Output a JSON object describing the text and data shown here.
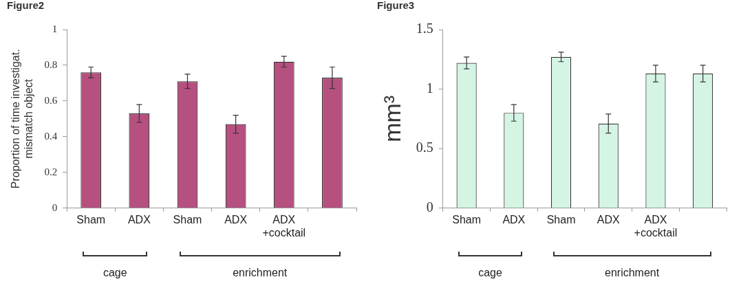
{
  "chart_data": [
    {
      "type": "bar",
      "title": "Figure2",
      "ylabel": "Proportion of time investigat.\nmismatch object",
      "categories": [
        "Sham",
        "ADX",
        "Sham",
        "ADX",
        "ADX +cocktail",
        null
      ],
      "values": [
        0.76,
        0.53,
        0.71,
        0.47,
        0.82,
        0.73
      ],
      "errors": [
        0.03,
        0.05,
        0.04,
        0.05,
        0.03,
        0.06
      ],
      "color": "#b5507f",
      "ylim": [
        0,
        1
      ],
      "yticks": [
        0,
        0.2,
        0.4,
        0.6,
        0.8,
        1
      ],
      "grid": false,
      "legend": false,
      "annotations": [
        "cage",
        "enrichment"
      ]
    },
    {
      "type": "bar",
      "title": "Figure3",
      "ylabel": "mm³",
      "categories": [
        "Sham",
        "ADX",
        "Sham",
        "ADX",
        "ADX +cocktail",
        null
      ],
      "values": [
        1.22,
        0.8,
        1.27,
        0.71,
        1.13,
        1.13
      ],
      "errors": [
        0.05,
        0.07,
        0.04,
        0.08,
        0.07,
        0.07
      ],
      "color": "#d4f5e4",
      "ylim": [
        0,
        1.5
      ],
      "yticks": [
        0,
        0.5,
        1,
        1.5
      ],
      "grid": false,
      "legend": false,
      "annotations": [
        "cage",
        "enrichment"
      ]
    }
  ]
}
